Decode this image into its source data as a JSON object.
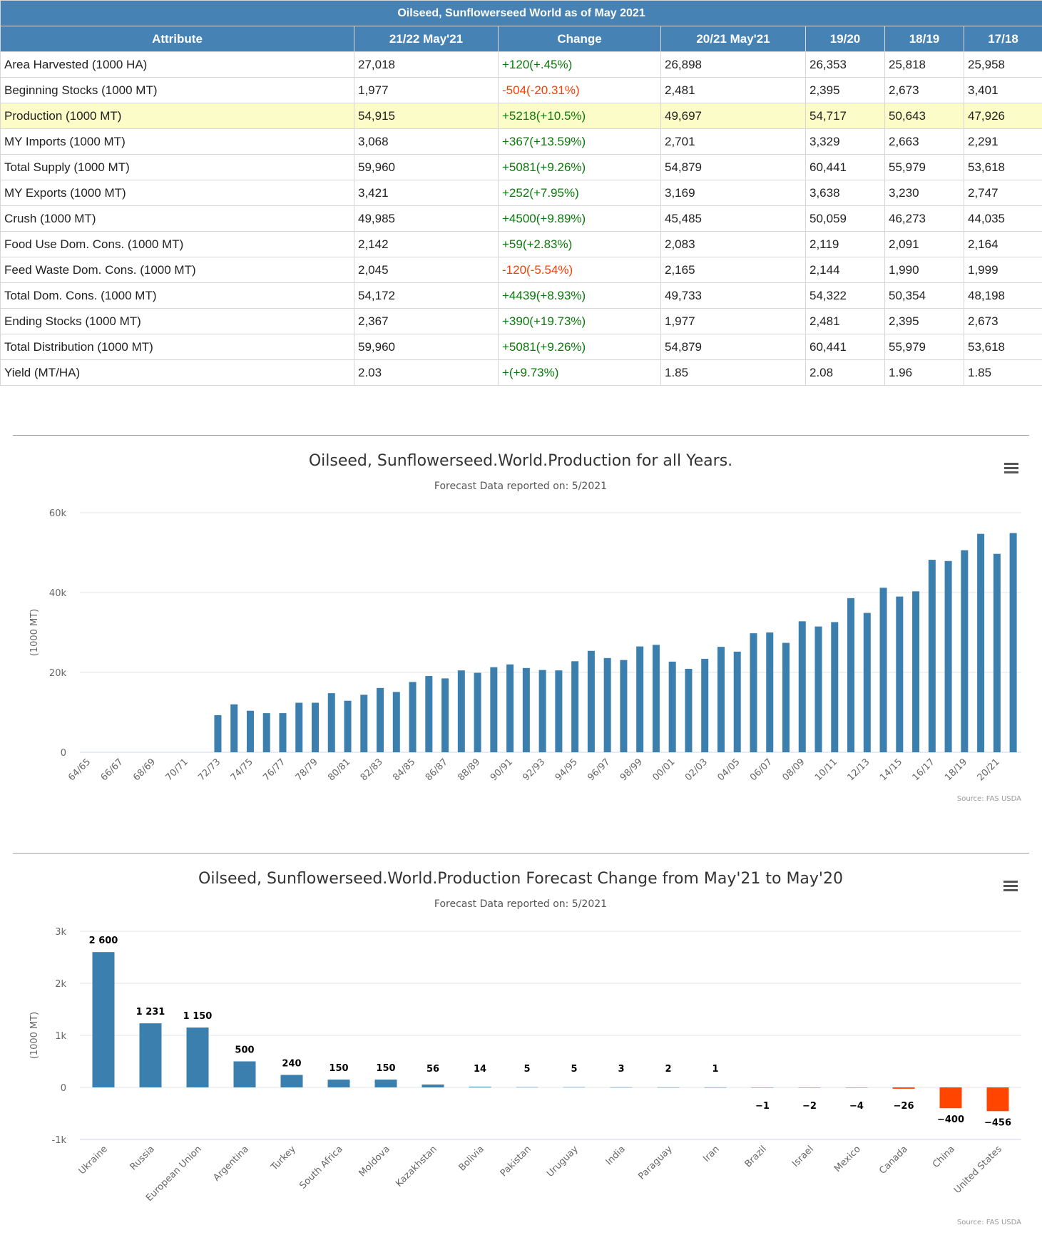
{
  "table": {
    "caption": "Oilseed, Sunflowerseed World as of May 2021",
    "headers": [
      "Attribute",
      "21/22 May'21",
      "Change",
      "20/21 May'21",
      "19/20",
      "18/19",
      "17/18"
    ],
    "rows": [
      {
        "attribute": "Area Harvested (1000 HA)",
        "v2122": "27,018",
        "change": "+120(+.45%)",
        "v2021": "26,898",
        "v1920": "26,353",
        "v1819": "25,818",
        "v1718": "25,958"
      },
      {
        "attribute": "Beginning Stocks (1000 MT)",
        "v2122": "1,977",
        "change": "-504(-20.31%)",
        "v2021": "2,481",
        "v1920": "2,395",
        "v1819": "2,673",
        "v1718": "3,401"
      },
      {
        "attribute": "Production (1000 MT)",
        "v2122": "54,915",
        "change": "+5218(+10.5%)",
        "v2021": "49,697",
        "v1920": "54,717",
        "v1819": "50,643",
        "v1718": "47,926"
      },
      {
        "attribute": "MY Imports (1000 MT)",
        "v2122": "3,068",
        "change": "+367(+13.59%)",
        "v2021": "2,701",
        "v1920": "3,329",
        "v1819": "2,663",
        "v1718": "2,291"
      },
      {
        "attribute": "Total Supply (1000 MT)",
        "v2122": "59,960",
        "change": "+5081(+9.26%)",
        "v2021": "54,879",
        "v1920": "60,441",
        "v1819": "55,979",
        "v1718": "53,618"
      },
      {
        "attribute": "MY Exports (1000 MT)",
        "v2122": "3,421",
        "change": "+252(+7.95%)",
        "v2021": "3,169",
        "v1920": "3,638",
        "v1819": "3,230",
        "v1718": "2,747"
      },
      {
        "attribute": "Crush (1000 MT)",
        "v2122": "49,985",
        "change": "+4500(+9.89%)",
        "v2021": "45,485",
        "v1920": "50,059",
        "v1819": "46,273",
        "v1718": "44,035"
      },
      {
        "attribute": "Food Use Dom. Cons. (1000 MT)",
        "v2122": "2,142",
        "change": "+59(+2.83%)",
        "v2021": "2,083",
        "v1920": "2,119",
        "v1819": "2,091",
        "v1718": "2,164"
      },
      {
        "attribute": "Feed Waste Dom. Cons. (1000 MT)",
        "v2122": "2,045",
        "change": "-120(-5.54%)",
        "v2021": "2,165",
        "v1920": "2,144",
        "v1819": "1,990",
        "v1718": "1,999"
      },
      {
        "attribute": "Total Dom. Cons. (1000 MT)",
        "v2122": "54,172",
        "change": "+4439(+8.93%)",
        "v2021": "49,733",
        "v1920": "54,322",
        "v1819": "50,354",
        "v1718": "48,198"
      },
      {
        "attribute": "Ending Stocks (1000 MT)",
        "v2122": "2,367",
        "change": "+390(+19.73%)",
        "v2021": "1,977",
        "v1920": "2,481",
        "v1819": "2,395",
        "v1718": "2,673"
      },
      {
        "attribute": "Total Distribution (1000 MT)",
        "v2122": "59,960",
        "change": "+5081(+9.26%)",
        "v2021": "54,879",
        "v1920": "60,441",
        "v1819": "55,979",
        "v1718": "53,618"
      },
      {
        "attribute": "Yield (MT/HA)",
        "v2122": "2.03",
        "change": "+(+9.73%)",
        "v2021": "1.85",
        "v1920": "2.08",
        "v1819": "1.96",
        "v1718": "1.85"
      }
    ],
    "highlighted_row": "Production (1000 MT)",
    "colors": {
      "header": "#4682b4",
      "highlight": "#fcfcc8",
      "positive": "#0a7a0a",
      "negative": "#ff3c00"
    }
  },
  "chart_data": [
    {
      "type": "bar",
      "title": "Oilseed, Sunflowerseed.World.Production for all Years.",
      "subtitle": "Forecast Data reported on: 5/2021",
      "ylabel": "(1000 MT)",
      "credit": "Source: FAS USDA",
      "ylim": [
        0,
        60000
      ],
      "yticks": [
        0,
        20000,
        40000,
        60000
      ],
      "ytick_labels": [
        "0",
        "20k",
        "40k",
        "60k"
      ],
      "grid": true,
      "color": "#3a7fad",
      "categories": [
        "64/65",
        "65/66",
        "66/67",
        "67/68",
        "68/69",
        "69/70",
        "70/71",
        "71/72",
        "72/73",
        "73/74",
        "74/75",
        "75/76",
        "76/77",
        "77/78",
        "78/79",
        "79/80",
        "80/81",
        "81/82",
        "82/83",
        "83/84",
        "84/85",
        "85/86",
        "86/87",
        "87/88",
        "88/89",
        "89/90",
        "90/91",
        "91/92",
        "92/93",
        "93/94",
        "94/95",
        "95/96",
        "96/97",
        "97/98",
        "98/99",
        "99/00",
        "00/01",
        "01/02",
        "02/03",
        "03/04",
        "04/05",
        "05/06",
        "06/07",
        "07/08",
        "08/09",
        "09/10",
        "10/11",
        "11/12",
        "12/13",
        "13/14",
        "14/15",
        "15/16",
        "16/17",
        "17/18",
        "18/19",
        "19/20",
        "20/21",
        "21/22"
      ],
      "shown_tick_labels": [
        "64/65",
        "66/67",
        "68/69",
        "70/71",
        "72/73",
        "74/75",
        "76/77",
        "78/79",
        "80/81",
        "82/83",
        "84/85",
        "86/87",
        "88/89",
        "90/91",
        "92/93",
        "94/95",
        "96/97",
        "98/99",
        "00/01",
        "02/03",
        "04/05",
        "06/07",
        "08/09",
        "10/11",
        "12/13",
        "14/15",
        "16/17",
        "18/19",
        "20/21"
      ],
      "values": [
        0,
        0,
        0,
        0,
        0,
        0,
        0,
        0,
        9300,
        12000,
        10400,
        9800,
        9800,
        12400,
        12400,
        14800,
        12900,
        14400,
        16100,
        15100,
        17600,
        19100,
        18500,
        20500,
        19900,
        21300,
        22000,
        21100,
        20600,
        20500,
        22800,
        25400,
        23600,
        23100,
        26500,
        26900,
        22700,
        20900,
        23400,
        26400,
        25200,
        29800,
        30000,
        27400,
        32800,
        31500,
        32600,
        38600,
        34900,
        41200,
        39000,
        40300,
        48200,
        47900,
        50600,
        54700,
        49700,
        54900
      ]
    },
    {
      "type": "bar",
      "title": "Oilseed, Sunflowerseed.World.Production Forecast Change from May'21 to May'20",
      "subtitle": "Forecast Data reported on: 5/2021",
      "ylabel": "(1000 MT)",
      "credit": "Source: FAS USDA",
      "ylim": [
        -1000,
        3000
      ],
      "yticks": [
        -1000,
        0,
        1000,
        2000,
        3000
      ],
      "ytick_labels": [
        "-1k",
        "0",
        "1k",
        "2k",
        "3k"
      ],
      "grid": true,
      "positive_color": "#3a7fad",
      "negative_color": "#ff4500",
      "categories": [
        "Ukraine",
        "Russia",
        "European Union",
        "Argentina",
        "Turkey",
        "South Africa",
        "Moldova",
        "Kazakhstan",
        "Bolivia",
        "Pakistan",
        "Uruguay",
        "India",
        "Paraguay",
        "Iran",
        "Brazil",
        "Israel",
        "Mexico",
        "Canada",
        "China",
        "United States"
      ],
      "values": [
        2600,
        1231,
        1150,
        500,
        240,
        150,
        150,
        56,
        14,
        5,
        5,
        3,
        2,
        1,
        -1,
        -2,
        -4,
        -26,
        -400,
        -456
      ],
      "data_labels": [
        "2 600",
        "1 231",
        "1 150",
        "500",
        "240",
        "150",
        "150",
        "56",
        "14",
        "5",
        "5",
        "3",
        "2",
        "1",
        "−1",
        "−2",
        "−4",
        "−26",
        "−400",
        "−456"
      ]
    }
  ]
}
